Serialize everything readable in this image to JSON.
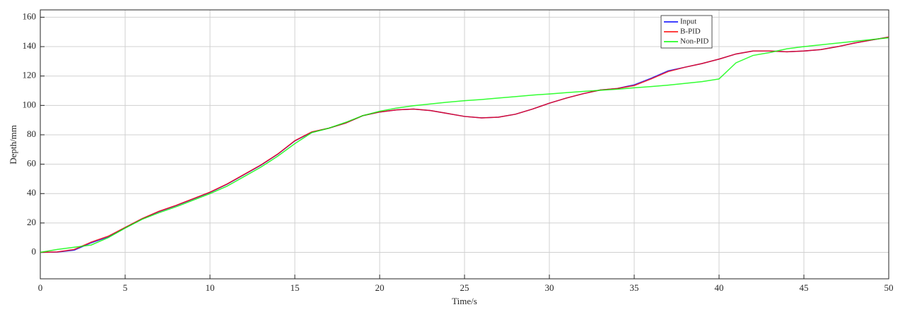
{
  "chart_data": {
    "type": "line",
    "x_label": "Time/s",
    "y_label": "Depth/mm",
    "x": [
      0,
      1,
      2,
      3,
      4,
      5,
      6,
      7,
      8,
      9,
      10,
      11,
      12,
      13,
      14,
      15,
      16,
      17,
      18,
      19,
      20,
      21,
      22,
      23,
      24,
      25,
      26,
      27,
      28,
      29,
      30,
      31,
      32,
      33,
      34,
      35,
      36,
      37,
      38,
      39,
      40,
      41,
      42,
      43,
      44,
      45,
      46,
      47,
      48,
      49,
      50
    ],
    "series": [
      {
        "name": "Input",
        "color": "#0000ff",
        "values": [
          0,
          0.2,
          1.5,
          6.5,
          10.5,
          16.8,
          22.8,
          27.8,
          31.8,
          36.3,
          40.8,
          46.3,
          52.8,
          59.3,
          66.8,
          75.8,
          81.8,
          84.5,
          88,
          93,
          95.5,
          97,
          97.5,
          96.5,
          94.5,
          92.5,
          91.5,
          92,
          94,
          97.5,
          101.5,
          105,
          108,
          110.5,
          111.5,
          114,
          118.5,
          123.5,
          126,
          128.5,
          131.5,
          135,
          137,
          137,
          136.5,
          137,
          138,
          140,
          142.5,
          144.5,
          146.5
        ]
      },
      {
        "name": "B-PID",
        "color": "#ff0000",
        "values": [
          0,
          0.3,
          2,
          7,
          11,
          17,
          23,
          28,
          32,
          36.5,
          41,
          46.5,
          53,
          59.5,
          67,
          76,
          82,
          84.5,
          88,
          93,
          95.5,
          97,
          97.5,
          96.5,
          94.5,
          92.5,
          91.5,
          92,
          94,
          97.5,
          101.5,
          105,
          108,
          110.5,
          111.5,
          113.5,
          118,
          123,
          126,
          128.5,
          131.5,
          135,
          137,
          137,
          136.5,
          137,
          138,
          140,
          142.5,
          144.5,
          146.5
        ]
      },
      {
        "name": "Non-PID",
        "color": "#00ff00",
        "values": [
          0,
          2,
          3.5,
          5,
          10,
          16.5,
          22.5,
          27,
          31,
          35.5,
          40,
          45,
          51.5,
          58,
          65.5,
          74,
          81.5,
          84.5,
          88.5,
          93,
          96,
          98.2,
          99.8,
          101,
          102.2,
          103.2,
          104,
          105,
          106,
          107,
          107.8,
          108.7,
          109.5,
          110.3,
          111,
          112,
          112.8,
          113.8,
          115,
          116.2,
          118,
          129,
          134,
          136,
          138.5,
          140,
          141.2,
          142.4,
          143.6,
          144.8,
          146
        ]
      }
    ],
    "xlim": [
      0,
      50
    ],
    "xticks": [
      0,
      5,
      10,
      15,
      20,
      25,
      30,
      35,
      40,
      45,
      50
    ],
    "ylim": [
      -18,
      165
    ],
    "yticks": [
      0,
      20,
      40,
      60,
      80,
      100,
      120,
      140,
      160
    ],
    "grid": true
  }
}
